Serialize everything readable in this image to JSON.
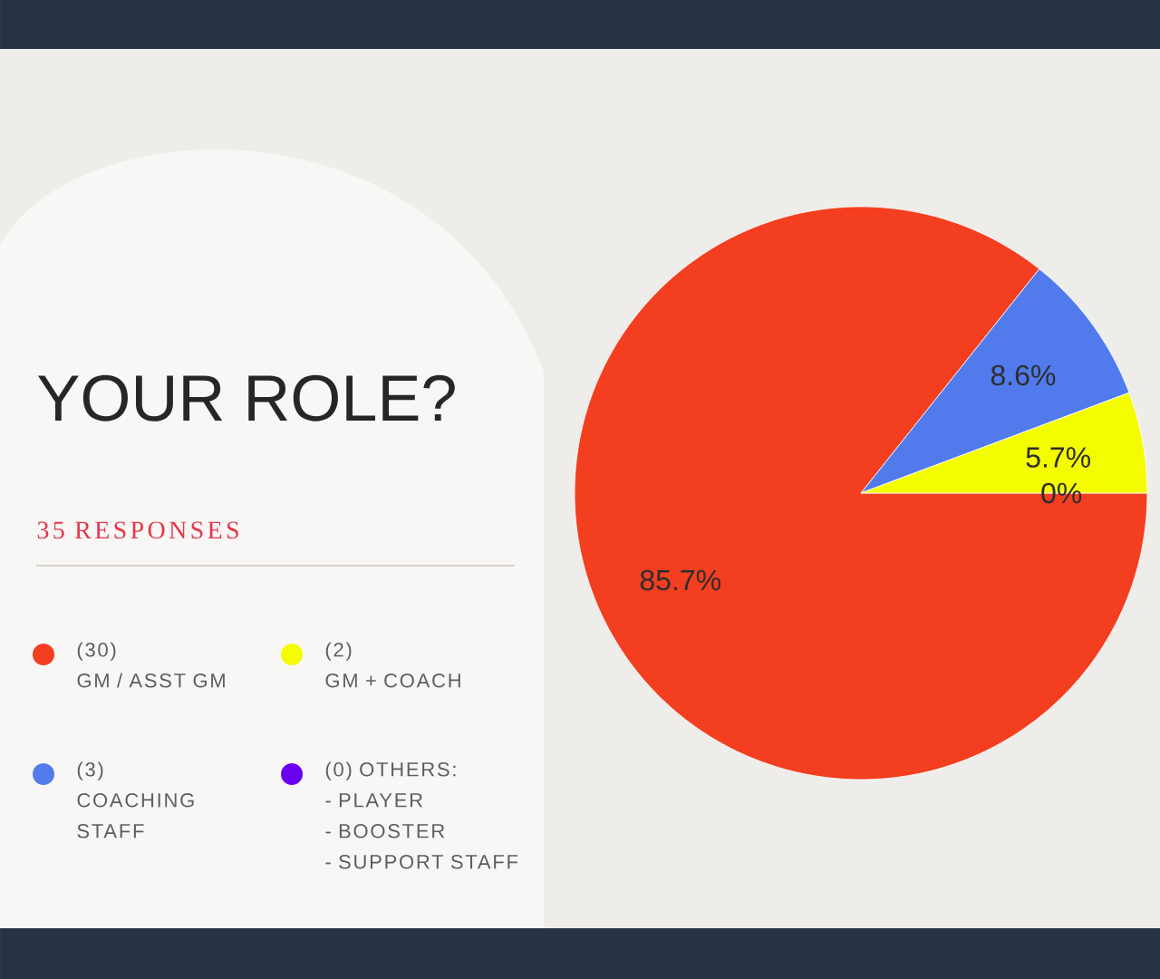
{
  "chart_data": {
    "type": "pie",
    "title": "YOUR ROLE?",
    "subtitle": "35 RESPONSES",
    "categories": [
      "(30)\nGM / ASST GM",
      "(3)\nCOACHING\nSTAFF",
      "(2)\nGM + COACH",
      "(0) OTHERS:\n- PLAYER\n- BOOSTER\n- SUPPORT STAFF"
    ],
    "values": [
      85.7,
      8.6,
      5.7,
      0
    ],
    "colors": [
      "#f33e1f",
      "#517bec",
      "#f4fc00",
      "#6a00f0"
    ],
    "value_labels": [
      "85.7%",
      "8.6%",
      "5.7%",
      "0%"
    ],
    "legend": "left"
  }
}
